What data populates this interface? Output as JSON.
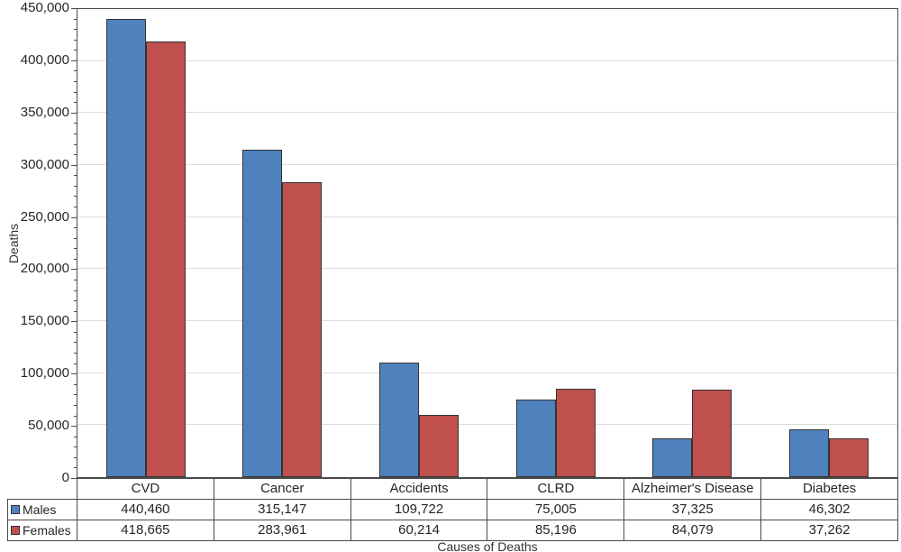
{
  "chart_data": {
    "type": "bar",
    "title": "",
    "categories": [
      "CVD",
      "Cancer",
      "Accidents",
      "CLRD",
      "Alzheimer's Disease",
      "Diabetes"
    ],
    "series": [
      {
        "name": "Males",
        "color": "#4F81BD",
        "values": [
          440460,
          315147,
          109722,
          75005,
          37325,
          46302
        ],
        "value_labels": [
          "440,460",
          "315,147",
          "109,722",
          "75,005",
          "37,325",
          "46,302"
        ]
      },
      {
        "name": "Females",
        "color": "#C0504D",
        "values": [
          418665,
          283961,
          60214,
          85196,
          84079,
          37262
        ],
        "value_labels": [
          "418,665",
          "283,961",
          "60,214",
          "85,196",
          "84,079",
          "37,262"
        ]
      }
    ],
    "xlabel": "Causes of Deaths",
    "ylabel": "Deaths",
    "ylim": [
      0,
      450000
    ],
    "ytick_step": 50000,
    "ytick_labels": [
      "0",
      "50,000",
      "100,000",
      "150,000",
      "200,000",
      "250,000",
      "300,000",
      "350,000",
      "400,000",
      "450,000"
    ],
    "minor_tick_step": 10000,
    "grid": true,
    "legend_position": "data-table-left"
  },
  "colors": {
    "male_bar": "#4F81BD",
    "female_bar": "#C0504D",
    "bar_border": "#333333",
    "gridline": "#DCDCDC",
    "axis": "#4D4D4D",
    "text": "#262626",
    "background": "#FFFFFF"
  }
}
